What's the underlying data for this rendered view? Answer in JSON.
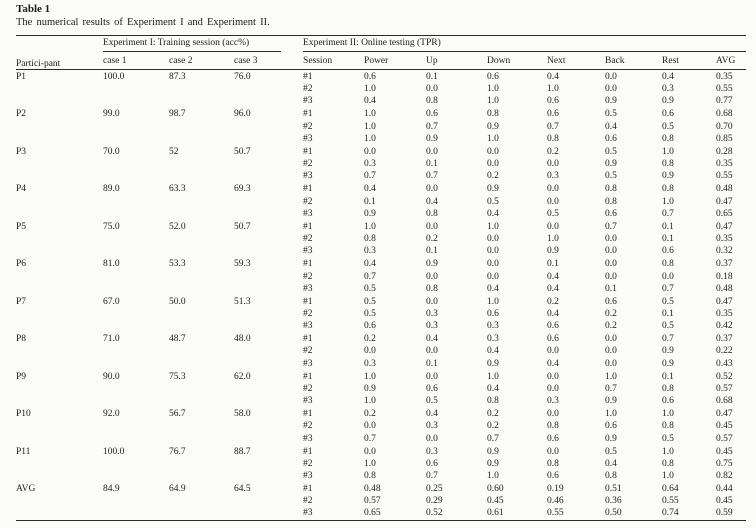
{
  "page": {
    "title": "Table 1",
    "caption": "The numerical results of Experiment I and Experiment II."
  },
  "table": {
    "col_headers": {
      "participant": "Partici-pant",
      "exp1_group": "Experiment I: Training session (acc%)",
      "exp2_group": "Experiment II: Online testing (TPR)",
      "exp1_cols": [
        "case 1",
        "case 2",
        "case 3"
      ],
      "exp2_cols": [
        "Session",
        "Power",
        "Up",
        "Down",
        "Next",
        "Back",
        "Rest",
        "AVG"
      ]
    },
    "participants": [
      {
        "id": "P1",
        "cases": [
          "100.0",
          "87.3",
          "76.0"
        ],
        "sessions": [
          {
            "label": "#1",
            "values": [
              "0.6",
              "0.1",
              "0.6",
              "0.4",
              "0.0",
              "0.4",
              "0.35"
            ]
          },
          {
            "label": "#2",
            "values": [
              "1.0",
              "0.0",
              "1.0",
              "1.0",
              "0.0",
              "0.3",
              "0.55"
            ]
          },
          {
            "label": "#3",
            "values": [
              "0.4",
              "0.8",
              "1.0",
              "0.6",
              "0.9",
              "0.9",
              "0.77"
            ]
          }
        ]
      },
      {
        "id": "P2",
        "cases": [
          "99.0",
          "98.7",
          "96.0"
        ],
        "sessions": [
          {
            "label": "#1",
            "values": [
              "1.0",
              "0.6",
              "0.8",
              "0.6",
              "0.5",
              "0.6",
              "0.68"
            ]
          },
          {
            "label": "#2",
            "values": [
              "1.0",
              "0.7",
              "0.9",
              "0.7",
              "0.4",
              "0.5",
              "0.70"
            ]
          },
          {
            "label": "#3",
            "values": [
              "1.0",
              "0.9",
              "1.0",
              "0.8",
              "0.6",
              "0.8",
              "0.85"
            ]
          }
        ]
      },
      {
        "id": "P3",
        "cases": [
          "70.0",
          "52",
          "50.7"
        ],
        "sessions": [
          {
            "label": "#1",
            "values": [
              "0.0",
              "0.0",
              "0.0",
              "0.2",
              "0.5",
              "1.0",
              "0.28"
            ]
          },
          {
            "label": "#2",
            "values": [
              "0.3",
              "0.1",
              "0.0",
              "0.0",
              "0.9",
              "0.8",
              "0.35"
            ]
          },
          {
            "label": "#3",
            "values": [
              "0.7",
              "0.7",
              "0.2",
              "0.3",
              "0.5",
              "0.9",
              "0.55"
            ]
          }
        ]
      },
      {
        "id": "P4",
        "cases": [
          "89.0",
          "63.3",
          "69.3"
        ],
        "sessions": [
          {
            "label": "#1",
            "values": [
              "0.4",
              "0.0",
              "0.9",
              "0.0",
              "0.8",
              "0.8",
              "0.48"
            ]
          },
          {
            "label": "#2",
            "values": [
              "0.1",
              "0.4",
              "0.5",
              "0.0",
              "0.8",
              "1.0",
              "0.47"
            ]
          },
          {
            "label": "#3",
            "values": [
              "0.9",
              "0.8",
              "0.4",
              "0.5",
              "0.6",
              "0.7",
              "0.65"
            ]
          }
        ]
      },
      {
        "id": "P5",
        "cases": [
          "75.0",
          "52.0",
          "50.7"
        ],
        "sessions": [
          {
            "label": "#1",
            "values": [
              "1.0",
              "0.0",
              "1.0",
              "0.0",
              "0.7",
              "0.1",
              "0.47"
            ]
          },
          {
            "label": "#2",
            "values": [
              "0.8",
              "0.2",
              "0.0",
              "1.0",
              "0.0",
              "0.1",
              "0.35"
            ]
          },
          {
            "label": "#3",
            "values": [
              "0.3",
              "0.1",
              "0.0",
              "0.9",
              "0.0",
              "0.6",
              "0.32"
            ]
          }
        ]
      },
      {
        "id": "P6",
        "cases": [
          "81.0",
          "53.3",
          "59.3"
        ],
        "sessions": [
          {
            "label": "#1",
            "values": [
              "0.4",
              "0.9",
              "0.0",
              "0.1",
              "0.0",
              "0.8",
              "0.37"
            ]
          },
          {
            "label": "#2",
            "values": [
              "0.7",
              "0.0",
              "0.0",
              "0.4",
              "0.0",
              "0.0",
              "0.18"
            ]
          },
          {
            "label": "#3",
            "values": [
              "0.5",
              "0.8",
              "0.4",
              "0.4",
              "0.1",
              "0.7",
              "0.48"
            ]
          }
        ]
      },
      {
        "id": "P7",
        "cases": [
          "67.0",
          "50.0",
          "51.3"
        ],
        "sessions": [
          {
            "label": "#1",
            "values": [
              "0.5",
              "0.0",
              "1.0",
              "0.2",
              "0.6",
              "0.5",
              "0.47"
            ]
          },
          {
            "label": "#2",
            "values": [
              "0.5",
              "0.3",
              "0.6",
              "0.4",
              "0.2",
              "0.1",
              "0.35"
            ]
          },
          {
            "label": "#3",
            "values": [
              "0.6",
              "0.3",
              "0.3",
              "0.6",
              "0.2",
              "0.5",
              "0.42"
            ]
          }
        ]
      },
      {
        "id": "P8",
        "cases": [
          "71.0",
          "48.7",
          "48.0"
        ],
        "sessions": [
          {
            "label": "#1",
            "values": [
              "0.2",
              "0.4",
              "0.3",
              "0.6",
              "0.0",
              "0.7",
              "0.37"
            ]
          },
          {
            "label": "#2",
            "values": [
              "0.0",
              "0.0",
              "0.4",
              "0.0",
              "0.0",
              "0.9",
              "0.22"
            ]
          },
          {
            "label": "#3",
            "values": [
              "0.3",
              "0.1",
              "0.9",
              "0.4",
              "0.0",
              "0.9",
              "0.43"
            ]
          }
        ]
      },
      {
        "id": "P9",
        "cases": [
          "90.0",
          "75.3",
          "62.0"
        ],
        "sessions": [
          {
            "label": "#1",
            "values": [
              "1.0",
              "0.0",
              "1.0",
              "0.0",
              "1.0",
              "0.1",
              "0.52"
            ]
          },
          {
            "label": "#2",
            "values": [
              "0.9",
              "0.6",
              "0.4",
              "0.0",
              "0.7",
              "0.8",
              "0.57"
            ]
          },
          {
            "label": "#3",
            "values": [
              "1.0",
              "0.5",
              "0.8",
              "0.3",
              "0.9",
              "0.6",
              "0.68"
            ]
          }
        ]
      },
      {
        "id": "P10",
        "cases": [
          "92.0",
          "56.7",
          "58.0"
        ],
        "sessions": [
          {
            "label": "#1",
            "values": [
              "0.2",
              "0.4",
              "0.2",
              "0.0",
              "1.0",
              "1.0",
              "0.47"
            ]
          },
          {
            "label": "#2",
            "values": [
              "0.0",
              "0.3",
              "0.2",
              "0.8",
              "0.6",
              "0.8",
              "0.45"
            ]
          },
          {
            "label": "#3",
            "values": [
              "0.7",
              "0.0",
              "0.7",
              "0.6",
              "0.9",
              "0.5",
              "0.57"
            ]
          }
        ]
      },
      {
        "id": "P11",
        "cases": [
          "100.0",
          "76.7",
          "88.7"
        ],
        "sessions": [
          {
            "label": "#1",
            "values": [
              "0.0",
              "0.3",
              "0.9",
              "0.0",
              "0.5",
              "1.0",
              "0.45"
            ]
          },
          {
            "label": "#2",
            "values": [
              "1.0",
              "0.6",
              "0.9",
              "0.8",
              "0.4",
              "0.8",
              "0.75"
            ]
          },
          {
            "label": "#3",
            "values": [
              "0.8",
              "0.7",
              "1.0",
              "0.6",
              "0.8",
              "1.0",
              "0.82"
            ]
          }
        ]
      },
      {
        "id": "AVG",
        "cases": [
          "84.9",
          "64.9",
          "64.5"
        ],
        "sessions": [
          {
            "label": "#1",
            "values": [
              "0.48",
              "0.25",
              "0.60",
              "0.19",
              "0.51",
              "0.64",
              "0.44"
            ]
          },
          {
            "label": "#2",
            "values": [
              "0.57",
              "0.29",
              "0.45",
              "0.46",
              "0.36",
              "0.55",
              "0.45"
            ]
          },
          {
            "label": "#3",
            "values": [
              "0.65",
              "0.52",
              "0.61",
              "0.55",
              "0.50",
              "0.74",
              "0.59"
            ]
          }
        ]
      }
    ]
  }
}
